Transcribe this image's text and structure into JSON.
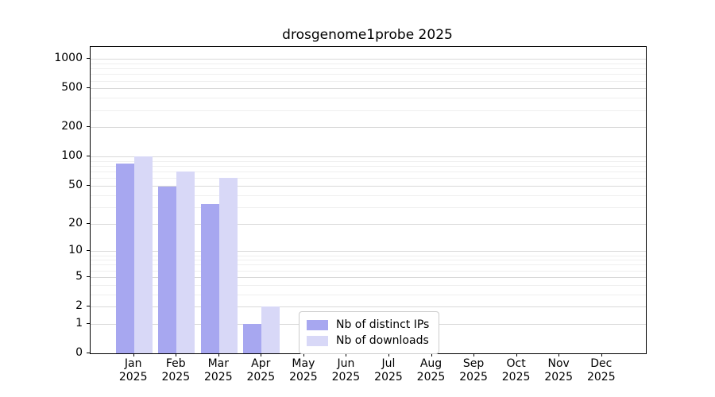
{
  "chart_data": {
    "type": "bar",
    "title": "drosgenome1probe 2025",
    "year_label": "2025",
    "categories": [
      "Jan",
      "Feb",
      "Mar",
      "Apr",
      "May",
      "Jun",
      "Jul",
      "Aug",
      "Sep",
      "Oct",
      "Nov",
      "Dec"
    ],
    "series": [
      {
        "name": "Nb of distinct IPs",
        "color": "#a7a7f0",
        "values": [
          85,
          49,
          32,
          1,
          0,
          0,
          0,
          0,
          0,
          0,
          0,
          0
        ]
      },
      {
        "name": "Nb of downloads",
        "color": "#d8d8f7",
        "values": [
          100,
          70,
          61,
          2,
          0,
          0,
          0,
          0,
          0,
          0,
          0,
          0
        ]
      }
    ],
    "xlabel": "",
    "ylabel": "",
    "y_scale": "log1p",
    "y_ticks": [
      0,
      1,
      2,
      5,
      10,
      20,
      50,
      100,
      200,
      500,
      1000
    ],
    "y_minor_tick_mantissas": [
      3,
      4,
      6,
      7,
      8,
      9
    ],
    "ylim": [
      0,
      1000
    ],
    "grid": {
      "enabled": true,
      "major_color": "#d9d9d9",
      "minor_color": "#efefef"
    },
    "legend": {
      "position": "bottom-center",
      "border_color": "#cccccc",
      "background": "#ffffff"
    },
    "background_color": "#ffffff",
    "spine_color": "#000000"
  }
}
